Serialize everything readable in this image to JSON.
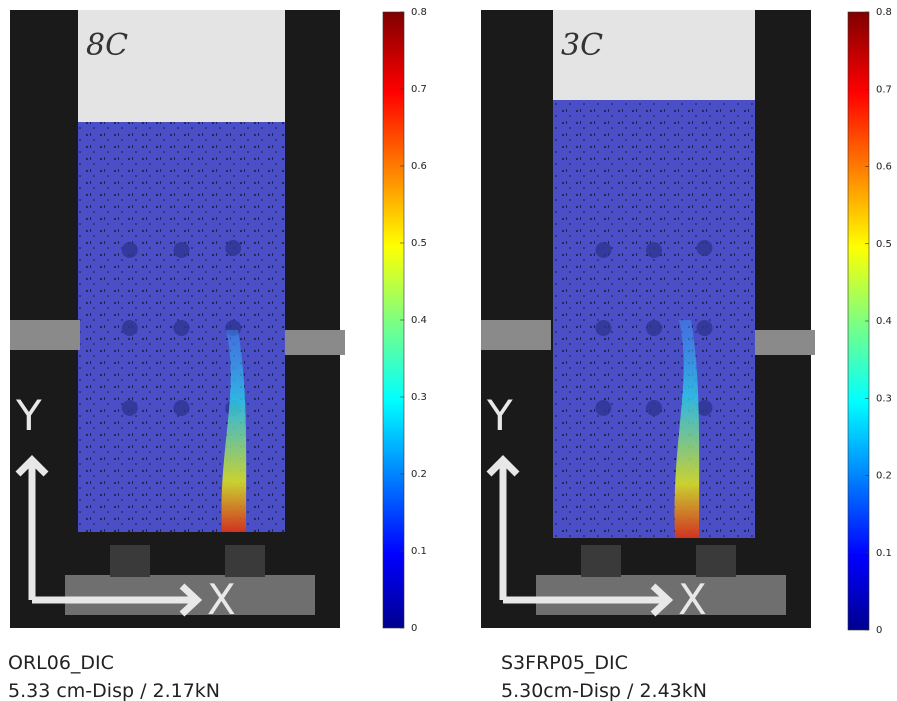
{
  "panels": [
    {
      "handwritten_label": "8C",
      "axis_y": "Y",
      "axis_x": "X",
      "caption": "ORL06_DIC",
      "subcaption": "5.33 cm-Disp / 2.17kN",
      "colorbar": {
        "ticks": [
          0,
          0.1,
          0.2,
          0.3,
          0.4,
          0.5,
          0.6,
          0.7,
          0.8
        ]
      }
    },
    {
      "handwritten_label": "3C",
      "axis_y": "Y",
      "axis_x": "X",
      "caption": "S3FRP05_DIC",
      "subcaption": "5.30cm-Disp / 2.43kN",
      "colorbar": {
        "ticks": [
          0,
          0.1,
          0.2,
          0.3,
          0.4,
          0.5,
          0.6,
          0.7,
          0.8
        ]
      }
    }
  ]
}
